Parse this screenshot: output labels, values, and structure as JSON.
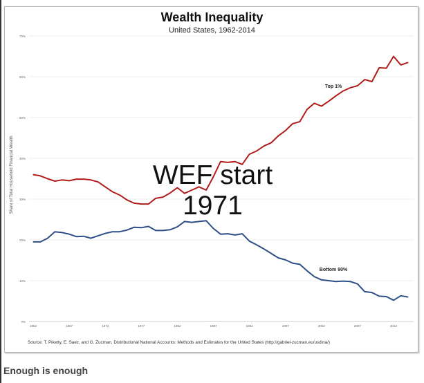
{
  "chart_data": {
    "type": "line",
    "title": "Wealth Inequality",
    "subtitle": "United States, 1962-2014",
    "ylabel": "Share of Total Household Financial Wealth",
    "xlabel": "",
    "ylim": [
      0,
      70
    ],
    "xlim": [
      1962,
      2014
    ],
    "grid": true,
    "y_ticks": [
      "0%",
      "10%",
      "20%",
      "30%",
      "40%",
      "50%",
      "60%",
      "70%"
    ],
    "x_ticks": [
      "1962",
      "1967",
      "1972",
      "1977",
      "1982",
      "1987",
      "1992",
      "1997",
      "2002",
      "2007",
      "2012"
    ],
    "x": [
      1962,
      1963,
      1964,
      1965,
      1966,
      1967,
      1968,
      1969,
      1970,
      1971,
      1972,
      1973,
      1974,
      1975,
      1976,
      1977,
      1978,
      1979,
      1980,
      1981,
      1982,
      1983,
      1984,
      1985,
      1986,
      1987,
      1988,
      1989,
      1990,
      1991,
      1992,
      1993,
      1994,
      1995,
      1996,
      1997,
      1998,
      1999,
      2000,
      2001,
      2002,
      2003,
      2004,
      2005,
      2006,
      2007,
      2008,
      2009,
      2010,
      2011,
      2012,
      2013,
      2014
    ],
    "series": [
      {
        "name": "Top 1%",
        "color": "#b01c1c",
        "values": [
          36.0,
          35.7,
          35.0,
          34.4,
          34.7,
          34.5,
          34.9,
          34.9,
          34.7,
          34.2,
          33.0,
          31.8,
          31.0,
          29.8,
          29.0,
          28.8,
          28.8,
          30.2,
          30.5,
          31.5,
          32.8,
          31.4,
          32.2,
          33.0,
          32.2,
          35.5,
          39.2,
          39.0,
          39.2,
          38.5,
          41.0,
          41.8,
          43.0,
          43.8,
          45.5,
          46.8,
          48.5,
          49.0,
          52.0,
          53.5,
          52.8,
          54.0,
          55.3,
          56.5,
          57.3,
          57.8,
          59.3,
          58.8,
          62.2,
          62.1,
          65.0,
          62.9,
          63.5
        ]
      },
      {
        "name": "Bottom 90%",
        "color": "#2d4f86",
        "values": [
          19.5,
          19.5,
          20.4,
          22.0,
          21.8,
          21.4,
          20.8,
          20.9,
          20.4,
          21.0,
          21.6,
          22.0,
          22.0,
          22.4,
          23.1,
          23.0,
          23.3,
          22.3,
          22.3,
          22.5,
          23.2,
          24.5,
          24.3,
          24.5,
          24.7,
          22.8,
          21.4,
          21.5,
          21.2,
          21.5,
          19.7,
          18.8,
          17.8,
          16.7,
          15.6,
          15.1,
          14.3,
          14.0,
          12.4,
          11.0,
          10.2,
          10.0,
          9.8,
          9.9,
          9.8,
          9.2,
          7.3,
          7.1,
          6.2,
          6.1,
          5.2,
          6.3,
          6.0
        ]
      }
    ],
    "annotations": [
      "Top 1%",
      "Bottom 90%"
    ],
    "source": "Source: T. Piketty, E. Saez, and G. Zucman,  Distributional National Accounts: Methods and Estimates for the United States (http://gabriel-zucman.eu/usdina/)"
  },
  "overlay": {
    "line1": "WEF start",
    "line2": "1971"
  },
  "caption": "Enough is enough"
}
